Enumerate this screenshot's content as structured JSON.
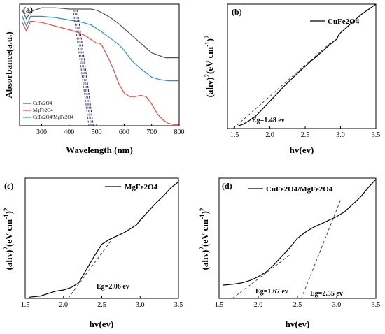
{
  "panels": [
    {
      "letter": "(a)",
      "legend_labels": [
        "CuFe2O4",
        "MgFe2O4",
        "CuFe2O4/MgFe2O4"
      ]
    },
    {
      "letter": "(b)",
      "legend_labels": [
        "CuFe2O4"
      ],
      "annotations": [
        "Eg=1.48 ev"
      ]
    },
    {
      "letter": "(c)",
      "legend_labels": [
        "MgFe2O4"
      ],
      "annotations": [
        "Eg=2.06 ev"
      ]
    },
    {
      "letter": "(d)",
      "legend_labels": [
        "CuFe2O4/MgFe2O4"
      ],
      "annotations": [
        "Eg=1.67 ev",
        "Eg=2.55 ev"
      ]
    }
  ],
  "chart_data": [
    {
      "type": "line",
      "xlabel": "Wavelength (nm)",
      "ylabel": "Absorbance(a.u.)",
      "xlim": [
        220,
        800
      ],
      "xticks": [
        300,
        400,
        500,
        600,
        700,
        800
      ],
      "ylim": [
        0,
        1
      ],
      "y_ticklabels_shown": false,
      "legend_position": "bottom-left",
      "series": [
        {
          "name": "CuFe2O4",
          "color": "#555555",
          "x": [
            230,
            245,
            260,
            300,
            350,
            400,
            450,
            480,
            500,
            520,
            550,
            580,
            610,
            650,
            700,
            750,
            800
          ],
          "y": [
            0.95,
            0.88,
            0.94,
            0.97,
            0.97,
            0.96,
            0.96,
            0.96,
            0.95,
            0.93,
            0.89,
            0.84,
            0.78,
            0.7,
            0.6,
            0.56,
            0.56
          ]
        },
        {
          "name": "MgFe2O4",
          "color": "#e8473f",
          "x": [
            230,
            245,
            260,
            300,
            350,
            400,
            430,
            460,
            480,
            500,
            510,
            520,
            540,
            560,
            580,
            600,
            620,
            640,
            660,
            680,
            700,
            720,
            740,
            760,
            780,
            800
          ],
          "y": [
            0.85,
            0.78,
            0.86,
            0.85,
            0.82,
            0.79,
            0.77,
            0.74,
            0.71,
            0.68,
            0.68,
            0.66,
            0.57,
            0.47,
            0.35,
            0.27,
            0.24,
            0.24,
            0.25,
            0.24,
            0.18,
            0.1,
            0.05,
            0.02,
            0.01,
            0.01
          ]
        },
        {
          "name": "CuFe2O4/MgFe2O4",
          "color": "#2b8fd6",
          "x": [
            230,
            245,
            260,
            300,
            350,
            400,
            450,
            480,
            500,
            520,
            550,
            580,
            600,
            630,
            660,
            700,
            730,
            760,
            800
          ],
          "y": [
            0.9,
            0.82,
            0.9,
            0.9,
            0.89,
            0.87,
            0.85,
            0.83,
            0.8,
            0.77,
            0.72,
            0.67,
            0.62,
            0.53,
            0.47,
            0.4,
            0.38,
            0.37,
            0.37
          ]
        }
      ],
      "marker_lines": [
        {
          "color": "#555555",
          "x_top": 415,
          "x_bottom": 472,
          "dashed": true
        },
        {
          "color": "#2b8fd6",
          "x_top": 420,
          "x_bottom": 478,
          "dashed": true
        },
        {
          "color": "#e8473f",
          "x_top": 425,
          "x_bottom": 482,
          "dashed": true
        },
        {
          "color": "#1a1aa0",
          "x_top": 430,
          "x_bottom": 488,
          "dashed": true
        }
      ]
    },
    {
      "type": "line",
      "xlabel": "hv(ev)",
      "ylabel": "(ahv)2(eV cm-1)2",
      "xlim": [
        1.4,
        3.5
      ],
      "xticks": [
        1.5,
        2.0,
        2.5,
        3.0,
        3.5
      ],
      "ylim": [
        0,
        1
      ],
      "legend_position": "top-right",
      "series": [
        {
          "name": "CuFe2O4",
          "color": "#000000",
          "x": [
            1.55,
            1.62,
            1.7,
            1.8,
            1.9,
            2.0,
            2.2,
            2.4,
            2.6,
            2.8,
            2.9,
            2.95,
            2.97,
            3.0,
            3.1,
            3.2,
            3.3,
            3.4,
            3.5
          ],
          "y": [
            0.02,
            0.035,
            0.06,
            0.1,
            0.16,
            0.22,
            0.34,
            0.45,
            0.55,
            0.65,
            0.7,
            0.72,
            0.75,
            0.77,
            0.82,
            0.87,
            0.92,
            0.96,
            1.0
          ]
        }
      ],
      "tangent": {
        "x": [
          1.48,
          2.88
        ],
        "y": [
          0.0,
          0.7
        ]
      }
    },
    {
      "type": "line",
      "xlabel": "hv(ev)",
      "ylabel": "(ahv)2(eV cm-1)2",
      "xlim": [
        1.5,
        3.5
      ],
      "xticks": [
        1.5,
        2.0,
        2.5,
        3.0,
        3.5
      ],
      "ylim": [
        0,
        1
      ],
      "legend_position": "top-right",
      "series": [
        {
          "name": "MgFe2O4",
          "color": "#000000",
          "x": [
            1.55,
            1.7,
            1.8,
            1.9,
            2.0,
            2.1,
            2.2,
            2.3,
            2.4,
            2.5,
            2.6,
            2.7,
            2.8,
            2.9,
            2.95,
            3.0,
            3.1,
            3.2,
            3.3,
            3.4,
            3.5
          ],
          "y": [
            0.01,
            0.02,
            0.04,
            0.06,
            0.07,
            0.09,
            0.13,
            0.24,
            0.35,
            0.45,
            0.49,
            0.52,
            0.55,
            0.59,
            0.61,
            0.65,
            0.72,
            0.79,
            0.85,
            0.92,
            0.97
          ]
        }
      ],
      "tangent": {
        "x": [
          2.06,
          2.62
        ],
        "y": [
          0.0,
          0.48
        ]
      }
    },
    {
      "type": "line",
      "xlabel": "hv(ev)",
      "ylabel": "(ahv)2(eV cm-1)2",
      "xlim": [
        1.5,
        3.5
      ],
      "xticks": [
        1.5,
        2.0,
        2.5,
        3.0,
        3.5
      ],
      "ylim": [
        0,
        1
      ],
      "legend_position": "top-right",
      "series": [
        {
          "name": "CuFe2O4/MgFe2O4",
          "color": "#000000",
          "x": [
            1.55,
            1.7,
            1.8,
            1.9,
            2.0,
            2.1,
            2.2,
            2.3,
            2.4,
            2.5,
            2.6,
            2.7,
            2.8,
            2.9,
            3.0,
            3.1,
            3.2,
            3.3,
            3.4,
            3.5
          ],
          "y": [
            0.11,
            0.12,
            0.13,
            0.15,
            0.18,
            0.22,
            0.28,
            0.35,
            0.42,
            0.5,
            0.55,
            0.59,
            0.62,
            0.65,
            0.68,
            0.72,
            0.78,
            0.84,
            0.92,
            0.99
          ]
        }
      ],
      "tangents": [
        {
          "x": [
            1.67,
            2.4
          ],
          "y": [
            0.0,
            0.36
          ]
        },
        {
          "x": [
            2.55,
            3.05
          ],
          "y": [
            0.0,
            0.82
          ]
        }
      ]
    }
  ]
}
